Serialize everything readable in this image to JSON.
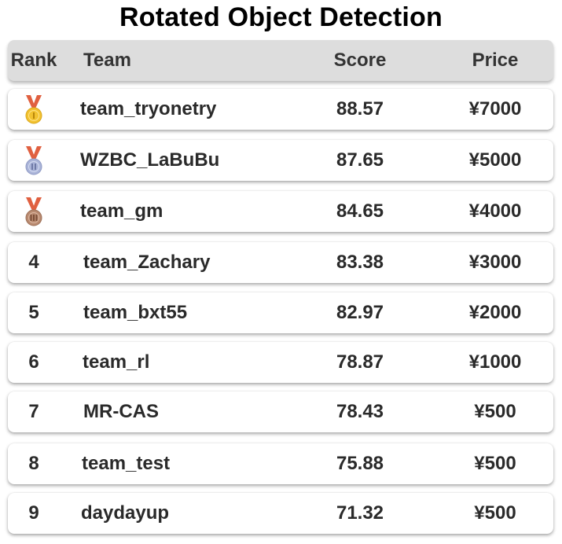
{
  "title": "Rotated Object Detection",
  "columns": {
    "rank": "Rank",
    "team": "Team",
    "score": "Score",
    "price": "Price"
  },
  "rows": [
    {
      "rank": "1",
      "medal": "gold-medal-icon",
      "team": "team_tryonetry",
      "score": "88.57",
      "price": "¥7000"
    },
    {
      "rank": "2",
      "medal": "silver-medal-icon",
      "team": "WZBC_LaBuBu",
      "score": "87.65",
      "price": "¥5000"
    },
    {
      "rank": "3",
      "medal": "bronze-medal-icon",
      "team": "team_gm",
      "score": "84.65",
      "price": "¥4000"
    },
    {
      "rank": "4",
      "team": "team_Zachary",
      "score": "83.38",
      "price": "¥3000"
    },
    {
      "rank": "5",
      "team": "team_bxt55",
      "score": "82.97",
      "price": "¥2000"
    },
    {
      "rank": "6",
      "team": "team_rl",
      "score": "78.87",
      "price": "¥1000"
    },
    {
      "rank": "7",
      "team": "MR-CAS",
      "score": "78.43",
      "price": "¥500"
    },
    {
      "rank": "8",
      "team": "team_test",
      "score": "75.88",
      "price": "¥500"
    },
    {
      "rank": "9",
      "team": "daydayup",
      "score": "71.32",
      "price": "¥500"
    }
  ],
  "colors": {
    "header_bg": "#dddddd",
    "ribbon": "#e06040",
    "gold": "#f2c230",
    "silver": "#aab4d8",
    "bronze": "#b98a70"
  }
}
